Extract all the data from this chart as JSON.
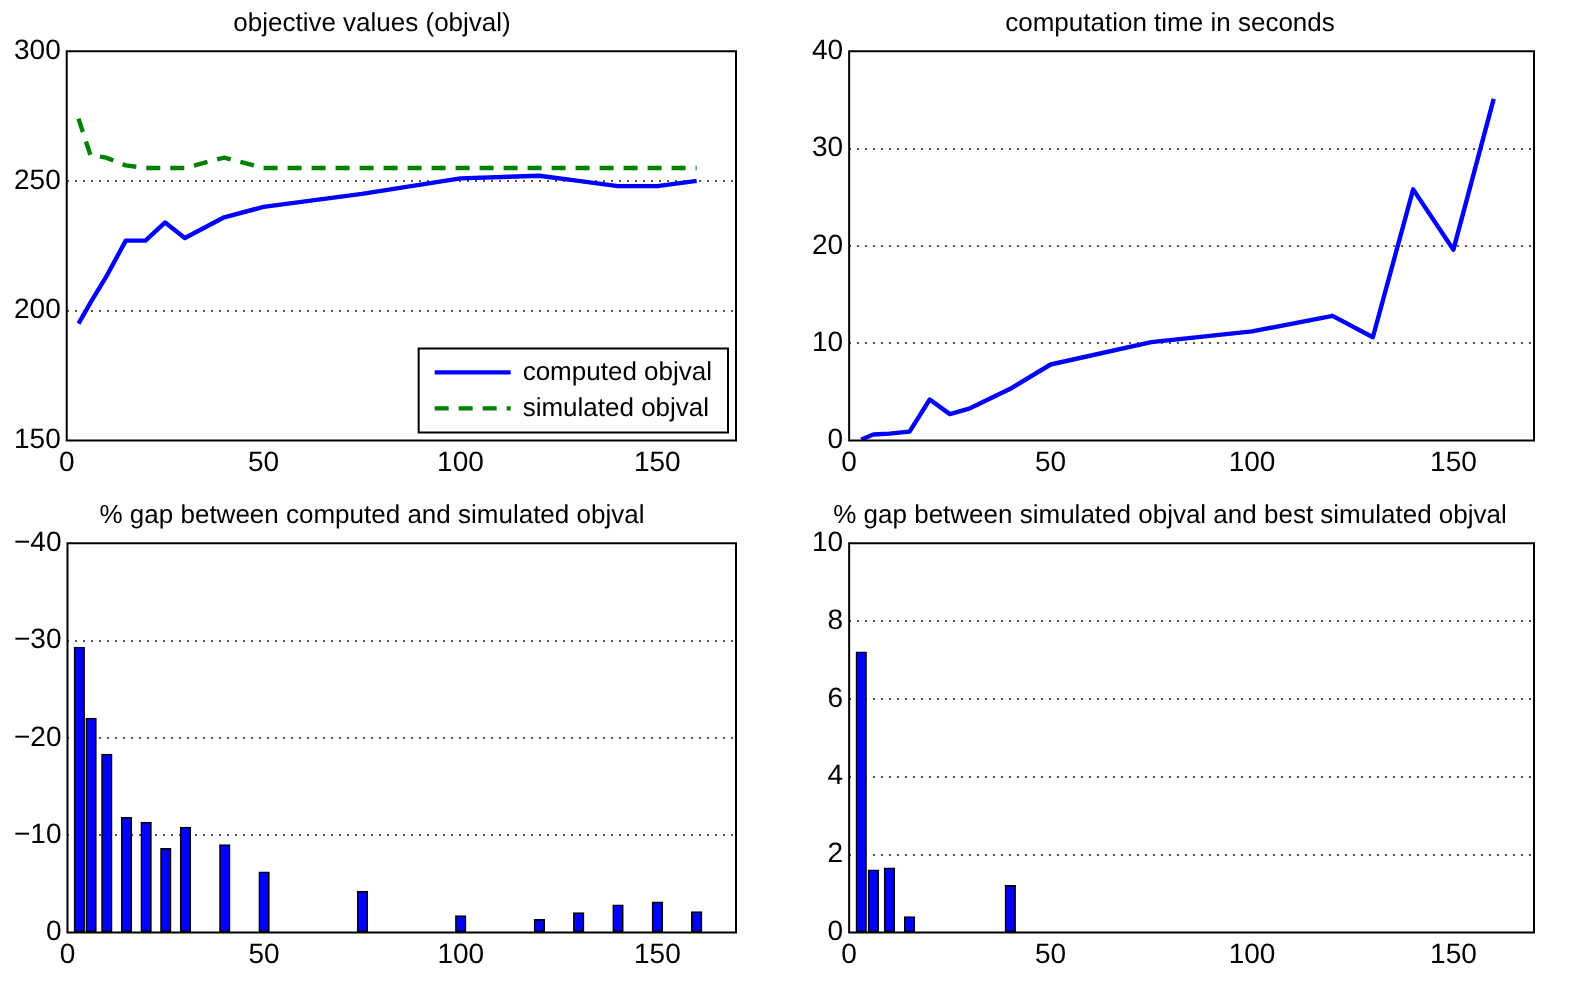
{
  "chart_data": [
    {
      "type": "line",
      "title": "objective values (objval)",
      "x": [
        3,
        6,
        10,
        15,
        20,
        25,
        30,
        40,
        50,
        75,
        100,
        120,
        130,
        140,
        150,
        160
      ],
      "series": [
        {
          "name": "computed objval",
          "color": "#0000ff",
          "line_style": "solid",
          "values": [
            195,
            203,
            213,
            227,
            227,
            234,
            228,
            236,
            240,
            245,
            251,
            252,
            250,
            248,
            248,
            250
          ]
        },
        {
          "name": "simulated objval",
          "color": "#008000",
          "line_style": "dashed",
          "values": [
            274,
            260,
            259,
            256,
            255,
            255,
            255,
            259,
            255,
            255,
            255,
            255,
            255,
            255,
            255,
            255
          ]
        }
      ],
      "xlim": [
        0,
        170
      ],
      "xticks": [
        0,
        50,
        100,
        150
      ],
      "ylim": [
        150,
        300
      ],
      "yticks": [
        150,
        200,
        250,
        300
      ],
      "grid": "y",
      "legend": "bottom right"
    },
    {
      "type": "line",
      "title": "computation time in seconds",
      "x": [
        3,
        6,
        10,
        15,
        20,
        25,
        30,
        40,
        50,
        75,
        100,
        120,
        130,
        140,
        150,
        160
      ],
      "series": [
        {
          "color": "#0000ff",
          "values": [
            0.1,
            0.6,
            0.7,
            0.9,
            4.2,
            2.7,
            3.3,
            5.3,
            7.8,
            10.1,
            11.2,
            12.8,
            10.6,
            25.8,
            19.6,
            35.1
          ]
        }
      ],
      "xlim": [
        0,
        170
      ],
      "xticks": [
        0,
        50,
        100,
        150
      ],
      "ylim": [
        0,
        40
      ],
      "yticks": [
        0,
        10,
        20,
        30,
        40
      ],
      "grid": "y"
    },
    {
      "type": "bar",
      "title": "% gap between computed and simulated objval",
      "x": [
        3,
        6,
        10,
        15,
        20,
        25,
        30,
        40,
        50,
        75,
        100,
        120,
        130,
        140,
        150,
        160
      ],
      "color": "#0000ff",
      "values": [
        -29.3,
        -22,
        -18.3,
        -11.8,
        -11.3,
        -8.6,
        -10.8,
        -9,
        -6.2,
        -4.2,
        -1.7,
        -1.3,
        -2,
        -2.8,
        -3.1,
        -2.1
      ],
      "xlim": [
        0,
        170
      ],
      "xticks": [
        0,
        50,
        100,
        150
      ],
      "ylim": [
        0,
        -40
      ],
      "yticks": [
        0,
        -10,
        -20,
        -30,
        -40
      ],
      "grid": "y"
    },
    {
      "type": "bar",
      "title": "% gap between simulated objval and best simulated objval",
      "x": [
        3,
        6,
        10,
        15,
        20,
        25,
        30,
        40,
        50,
        75,
        100,
        120,
        130,
        140,
        150,
        160
      ],
      "color": "#0000ff",
      "values": [
        7.2,
        1.6,
        1.65,
        0.4,
        0,
        0,
        0,
        1.2,
        0,
        0,
        0,
        0,
        0,
        0,
        0,
        0
      ],
      "xlim": [
        0,
        170
      ],
      "xticks": [
        0,
        50,
        100,
        150
      ],
      "ylim": [
        0,
        10
      ],
      "yticks": [
        0,
        2,
        4,
        6,
        8,
        10
      ],
      "grid": "y"
    }
  ]
}
